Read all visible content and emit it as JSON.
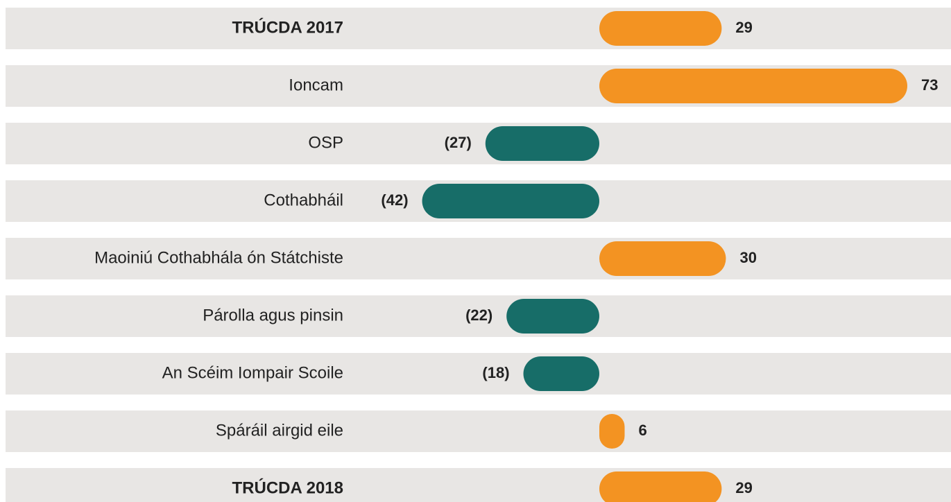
{
  "chart_data": {
    "type": "diverging-bar",
    "categories": [
      "TRÚCDA 2017",
      "Ioncam",
      "OSP",
      "Cothabháil",
      "Maoiniú Cothabhála ón Státchiste",
      "Párolla agus pinsin",
      "An Scéim Iompair Scoile",
      "Spáráil airgid eile",
      "TRÚCDA 2018"
    ],
    "values": [
      29,
      73,
      -27,
      -42,
      30,
      -22,
      -18,
      6,
      29
    ],
    "value_labels": [
      "29",
      "73",
      "(27)",
      "(42)",
      "30",
      "(22)",
      "(18)",
      "6",
      "29"
    ],
    "colors": {
      "positive": "#f39322",
      "negative": "#176d68"
    }
  }
}
